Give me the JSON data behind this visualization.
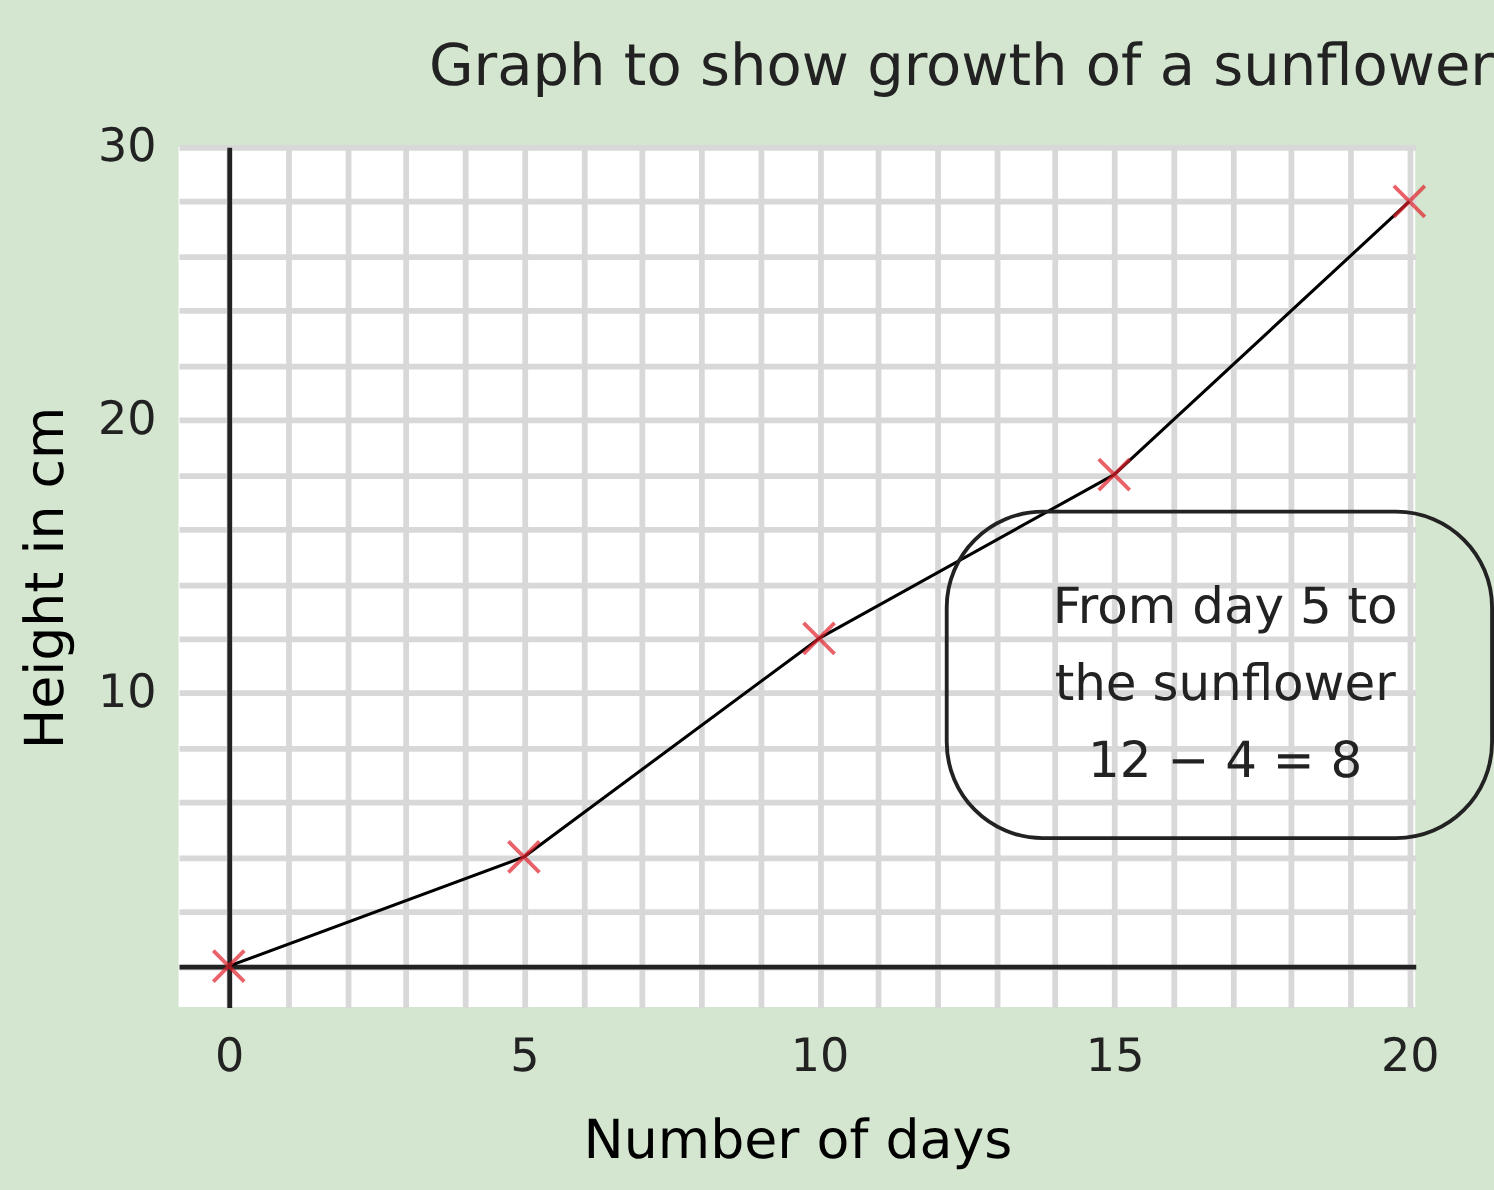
{
  "chart_data": {
    "type": "line",
    "title": "Graph to show growth of a sunflower",
    "xlabel": "Number of days",
    "ylabel": "Height in cm",
    "x": [
      0,
      5,
      10,
      15,
      20
    ],
    "series": [
      {
        "color": "#000000",
        "colors": [
          "#e0202a",
          "#e0202a",
          "#e0202a",
          "#e0202a",
          "#e0202a"
        ],
        "values": [
          0,
          4,
          12,
          18,
          28
        ]
      }
    ],
    "marker": "cross",
    "xlim": [
      -0.85,
      20.1
    ],
    "ylim": [
      -1.5,
      30
    ],
    "xticks": [
      0,
      {
        "value": 1,
        "label": null
      },
      {
        "value": 2,
        "label": null
      },
      {
        "value": 3,
        "label": null
      },
      {
        "value": 4,
        "label": null
      },
      5,
      {
        "value": 6,
        "label": null
      },
      {
        "value": 7,
        "label": null
      },
      {
        "value": 8,
        "label": null
      },
      {
        "value": 9,
        "label": null
      },
      10,
      {
        "value": 11,
        "label": null
      },
      {
        "value": 12,
        "label": null
      },
      {
        "value": 13,
        "label": null
      },
      {
        "value": 14,
        "label": null
      },
      15,
      {
        "value": 16,
        "label": null
      },
      {
        "value": 17,
        "label": null
      },
      {
        "value": 18,
        "label": null
      },
      {
        "value": 19,
        "label": null
      },
      20
    ],
    "yticks": [
      {
        "value": 0,
        "label": null
      },
      {
        "value": 2,
        "label": null
      },
      {
        "value": 4,
        "label": null
      },
      {
        "value": 6,
        "label": null
      },
      {
        "value": 8,
        "label": null
      },
      10,
      {
        "value": 12,
        "label": null
      },
      {
        "value": 14,
        "label": null
      },
      {
        "value": 16,
        "label": null
      },
      {
        "value": 18,
        "label": null
      },
      20,
      {
        "value": 22,
        "label": null
      },
      {
        "value": 24,
        "label": null
      },
      {
        "value": 26,
        "label": null
      },
      {
        "value": 28,
        "label": null
      },
      30
    ],
    "grid": true,
    "annotations": [
      "From day 5 to",
      "the sunflower",
      "12 − 4 = 8"
    ]
  }
}
